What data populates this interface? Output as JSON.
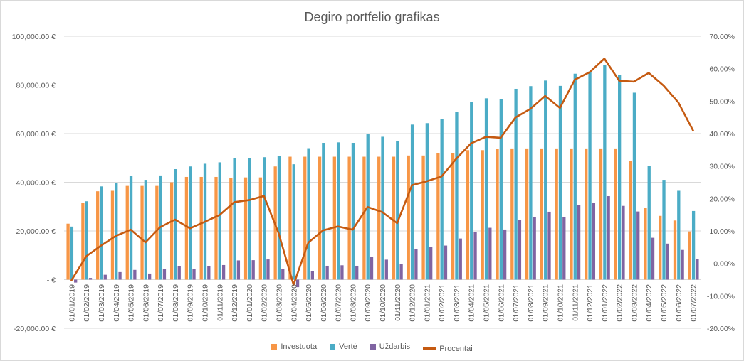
{
  "chart_data": {
    "type": "bar",
    "title": "Degiro portfelio grafikas",
    "categories": [
      "01/01/2019",
      "01/02/2019",
      "01/03/2019",
      "01/04/2019",
      "01/05/2019",
      "01/06/2019",
      "01/07/2019",
      "01/08/2019",
      "01/09/2019",
      "01/10/2019",
      "01/11/2019",
      "01/12/2019",
      "01/01/2020",
      "01/02/2020",
      "01/03/2020",
      "01/04/2020",
      "01/05/2020",
      "01/06/2020",
      "01/07/2020",
      "01/08/2020",
      "01/09/2020",
      "01/10/2020",
      "01/11/2020",
      "01/12/2020",
      "01/01/2021",
      "01/02/2021",
      "01/03/2021",
      "01/04/2021",
      "01/05/2021",
      "01/06/2021",
      "01/07/2021",
      "01/08/2021",
      "01/09/2021",
      "01/10/2021",
      "01/11/2021",
      "01/12/2021",
      "01/01/2022",
      "01/02/2022",
      "01/03/2022",
      "01/04/2022",
      "01/05/2022",
      "01/06/2022",
      "01/07/2022"
    ],
    "series": [
      {
        "name": "Investuota",
        "color": "#f79646",
        "axis": "left",
        "values": [
          23000,
          31500,
          36300,
          36500,
          38500,
          38500,
          38500,
          40000,
          42200,
          42200,
          42200,
          41900,
          42000,
          42000,
          46500,
          50500,
          50500,
          50500,
          50500,
          50500,
          50500,
          50500,
          50500,
          51000,
          51000,
          52000,
          52000,
          53200,
          53200,
          53600,
          53900,
          53900,
          53900,
          53900,
          53900,
          53900,
          53900,
          53900,
          48800,
          29600,
          26200,
          24300,
          19800
        ]
      },
      {
        "name": "Vertė",
        "color": "#4bacc6",
        "axis": "left",
        "values": [
          21800,
          32200,
          38300,
          39600,
          42500,
          41000,
          42800,
          45400,
          46500,
          47600,
          48200,
          49800,
          50000,
          50300,
          50800,
          47400,
          54000,
          56200,
          56400,
          56200,
          59700,
          58700,
          57000,
          63700,
          64300,
          66000,
          68900,
          72900,
          74500,
          74200,
          78400,
          79500,
          81800,
          79600,
          84600,
          85500,
          88200,
          84200,
          76800,
          46800,
          41000,
          36500,
          28200
        ]
      },
      {
        "name": "Uždarbis",
        "color": "#8064a2",
        "axis": "left",
        "values": [
          -1200,
          700,
          2000,
          3100,
          4000,
          2500,
          4300,
          5400,
          4300,
          5400,
          6000,
          7900,
          8000,
          8300,
          4300,
          -3100,
          3500,
          5700,
          5900,
          5700,
          9200,
          8200,
          6500,
          12700,
          13300,
          14000,
          16900,
          19700,
          21300,
          20600,
          24500,
          25600,
          27900,
          25700,
          30700,
          31600,
          34300,
          30300,
          28000,
          17200,
          14800,
          12200,
          8400
        ]
      },
      {
        "name": "Procentai",
        "color": "#c55a11",
        "axis": "right",
        "type": "line",
        "values": [
          -5.2,
          2.2,
          5.5,
          8.5,
          10.4,
          6.5,
          11.2,
          13.5,
          10.8,
          12.8,
          14.9,
          18.9,
          19.5,
          20.8,
          9.2,
          -6.6,
          6.4,
          10.2,
          11.4,
          10.4,
          17.4,
          15.8,
          12.4,
          24.1,
          25.3,
          26.8,
          32.3,
          37.0,
          39.0,
          38.7,
          45.0,
          47.6,
          51.6,
          47.9,
          56.6,
          58.9,
          63.1,
          56.3,
          56.0,
          58.7,
          54.8,
          49.6,
          40.9
        ]
      }
    ],
    "y_left": {
      "min": -20000,
      "max": 100000,
      "step": 20000,
      "tick_labels": [
        "-20,000.00 €",
        "-  €",
        "20,000.00 €",
        "40,000.00 €",
        "60,000.00 €",
        "80,000.00 €",
        "100,000.00 €"
      ]
    },
    "y_right": {
      "min": -20,
      "max": 70,
      "step": 10,
      "tick_labels": [
        "-20.00%",
        "-10.00%",
        "0.00%",
        "10.00%",
        "20.00%",
        "30.00%",
        "40.00%",
        "50.00%",
        "60.00%",
        "70.00%"
      ]
    },
    "legend_position": "bottom",
    "grid": true
  }
}
